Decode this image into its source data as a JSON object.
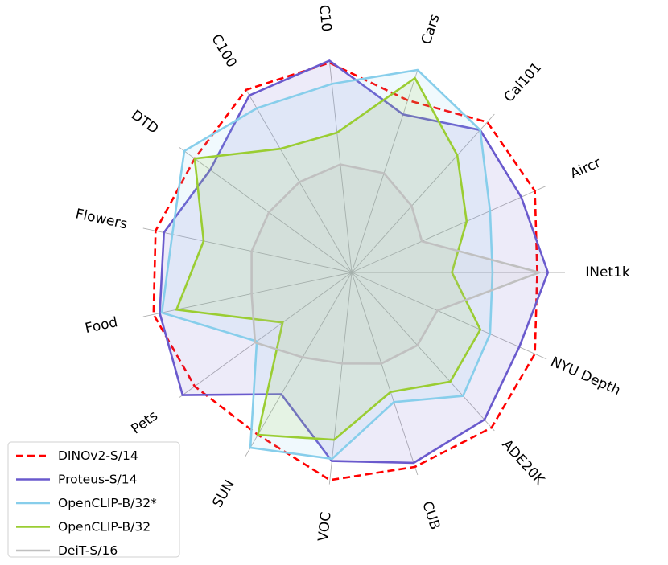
{
  "chart_data": {
    "type": "radar",
    "title": "",
    "axes": [
      "INet1k",
      "Aircr",
      "Cal101",
      "Cars",
      "C10",
      "C100",
      "DTD",
      "Flowers",
      "Food",
      "Pets",
      "SUN",
      "VOC",
      "CUB",
      "ADE20K",
      "NYU Depth"
    ],
    "scale": [
      0,
      1
    ],
    "grid": true,
    "legend_position": "lower-left",
    "series": [
      {
        "name": "DINOv2-S/14",
        "color": "#ff0000",
        "line_style": "dashed",
        "fill": false,
        "values": [
          0.87,
          0.94,
          0.95,
          0.85,
          0.99,
          0.99,
          0.91,
          0.94,
          0.95,
          0.91,
          0.88,
          0.98,
          0.96,
          0.98,
          0.94
        ]
      },
      {
        "name": "Proteus-S/14",
        "color": "#6a5acd",
        "line_style": "solid",
        "fill": true,
        "values": [
          0.92,
          0.87,
          0.9,
          0.78,
          1.0,
          0.96,
          0.82,
          0.9,
          0.92,
          0.98,
          0.66,
          0.89,
          0.94,
          0.93,
          0.86
        ]
      },
      {
        "name": "OpenCLIP-B/32*",
        "color": "#87ceeb",
        "line_style": "solid",
        "fill": true,
        "values": [
          0.66,
          0.71,
          0.9,
          1.0,
          0.89,
          0.89,
          0.97,
          0.86,
          0.91,
          0.55,
          0.95,
          0.88,
          0.64,
          0.78,
          0.71
        ]
      },
      {
        "name": "OpenCLIP-B/32",
        "color": "#9acd32",
        "line_style": "solid",
        "fill": true,
        "values": [
          0.47,
          0.59,
          0.74,
          0.96,
          0.66,
          0.67,
          0.91,
          0.71,
          0.84,
          0.4,
          0.88,
          0.79,
          0.59,
          0.69,
          0.66
        ]
      },
      {
        "name": "DeiT-S/16",
        "color": "#c0c0c0",
        "line_style": "solid",
        "fill": true,
        "values": [
          0.88,
          0.36,
          0.42,
          0.49,
          0.51,
          0.49,
          0.48,
          0.48,
          0.48,
          0.56,
          0.46,
          0.43,
          0.45,
          0.46,
          0.44
        ]
      }
    ]
  }
}
